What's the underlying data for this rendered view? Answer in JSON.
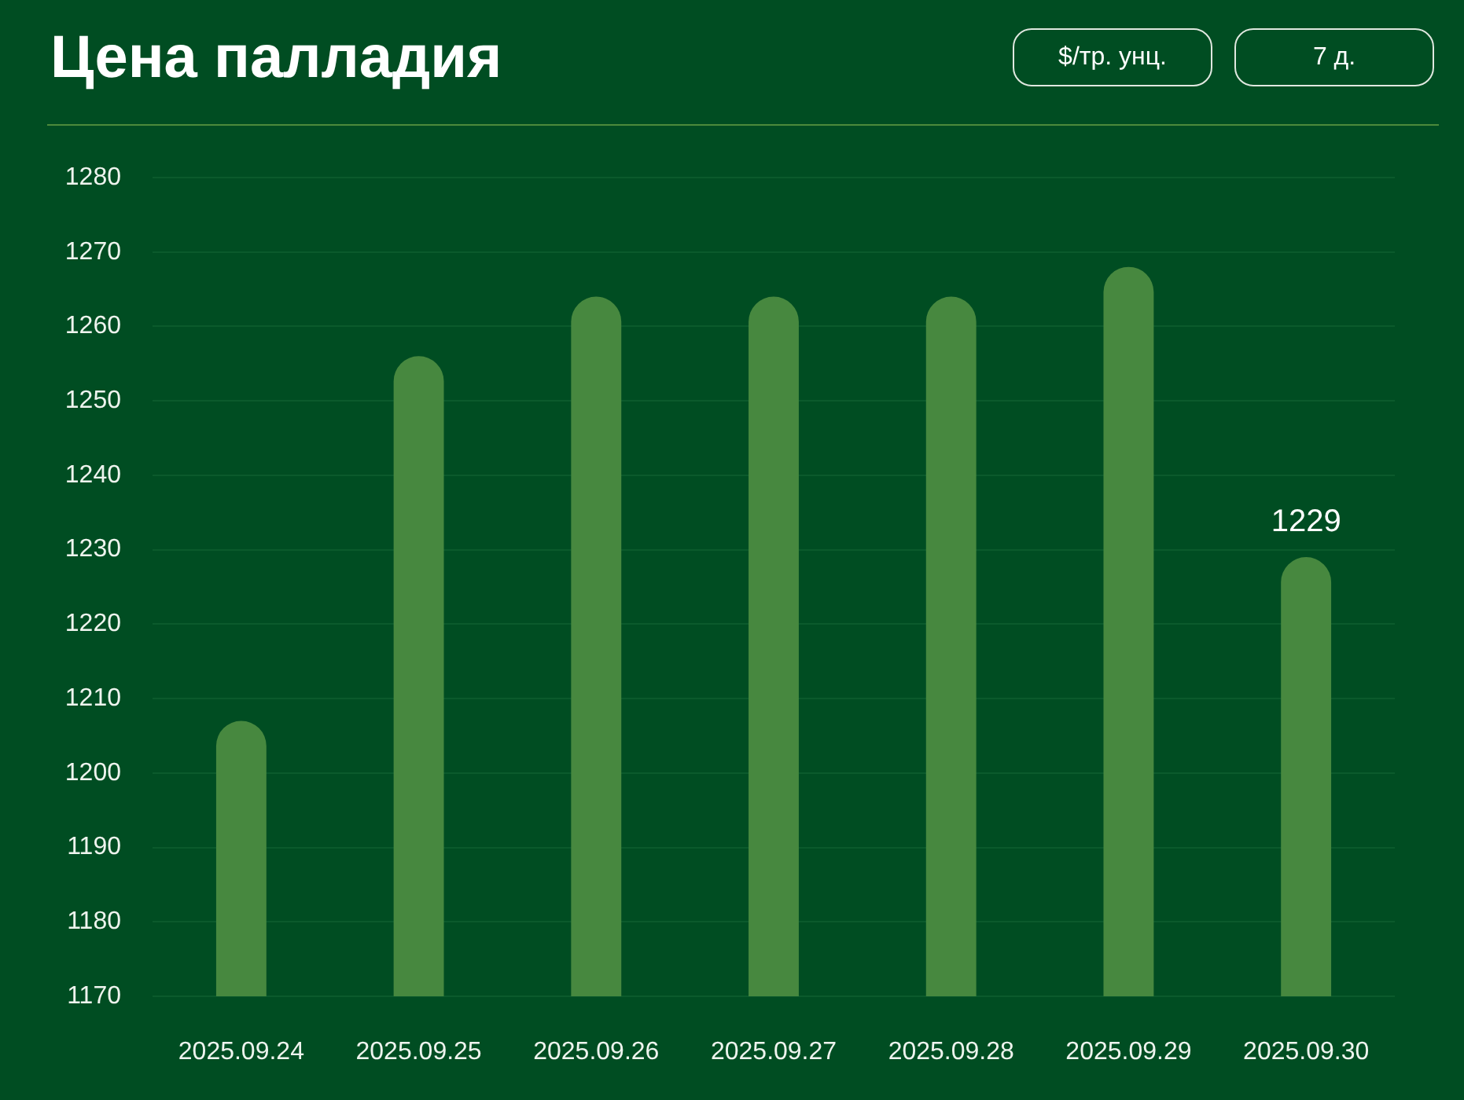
{
  "chart_data": {
    "type": "bar",
    "title": "Цена палладия",
    "categories": [
      "2025.09.24",
      "2025.09.25",
      "2025.09.26",
      "2025.09.27",
      "2025.09.28",
      "2025.09.29",
      "2025.09.30"
    ],
    "values": [
      1207,
      1256,
      1264,
      1264,
      1264,
      1268,
      1229
    ],
    "color": "#47883f",
    "value_labels": [
      null,
      null,
      null,
      null,
      null,
      null,
      "1229"
    ],
    "ylim": [
      1170,
      1280
    ],
    "yticks": [
      1170,
      1180,
      1190,
      1200,
      1210,
      1220,
      1230,
      1240,
      1250,
      1260,
      1270,
      1280
    ],
    "grid": "y",
    "annotations": [
      "$/тр. унц.",
      "7 д."
    ]
  }
}
